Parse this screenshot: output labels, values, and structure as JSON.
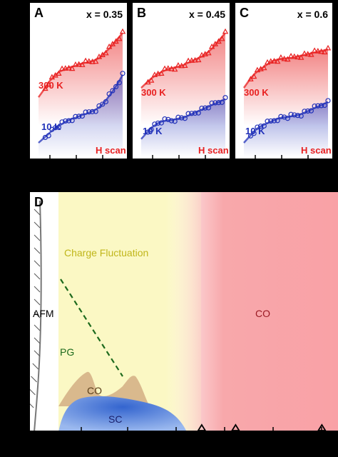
{
  "panels": [
    {
      "letter": "A",
      "xval": "x = 0.35",
      "label_300": "300 K",
      "label_10": "10 K",
      "scan": "H scan"
    },
    {
      "letter": "B",
      "xval": "x = 0.45",
      "label_300": "300 K",
      "label_10": "10 K",
      "scan": "H scan"
    },
    {
      "letter": "C",
      "xval": "x = 0.6",
      "label_300": "300 K",
      "label_10": "10 K",
      "scan": "H scan"
    }
  ],
  "main": {
    "letter": "D",
    "charge_fluctuation": "Charge Fluctuation",
    "afm": "AFM",
    "pg": "PG",
    "co_small": "CO",
    "sc": "SC",
    "co_big": "CO"
  },
  "colors": {
    "red": "#e82020",
    "blue": "#2030b8",
    "yellow_region": "#fbf8c4",
    "pink_region": "#f8a8ab",
    "co_dome": "#d9b98d",
    "sc_dome": "#2c62c8",
    "pg_line": "#1d6a1d",
    "cf_text": "#c0b61a",
    "co_text": "#9a1a24"
  },
  "chart_data": [
    {
      "type": "scatter",
      "panel": "A",
      "title": "x = 0.35",
      "series": [
        {
          "name": "300 K",
          "x": [
            0,
            0.04,
            0.08,
            0.12,
            0.16,
            0.2,
            0.24,
            0.28,
            0.32,
            0.36,
            0.4,
            0.44,
            0.48,
            0.52,
            0.56,
            0.6,
            0.64,
            0.68,
            0.72,
            0.76,
            0.8,
            0.84,
            0.88,
            0.92,
            0.96,
            1.0
          ],
          "y": [
            0.18,
            0.24,
            0.3,
            0.37,
            0.42,
            0.46,
            0.5,
            0.52,
            0.54,
            0.56,
            0.57,
            0.58,
            0.6,
            0.61,
            0.62,
            0.63,
            0.64,
            0.66,
            0.68,
            0.72,
            0.76,
            0.8,
            0.85,
            0.9,
            0.95,
            1.0
          ]
        },
        {
          "name": "10 K",
          "x": [
            0,
            0.04,
            0.08,
            0.12,
            0.16,
            0.2,
            0.24,
            0.28,
            0.32,
            0.36,
            0.4,
            0.44,
            0.48,
            0.52,
            0.56,
            0.6,
            0.64,
            0.68,
            0.72,
            0.76,
            0.8,
            0.84,
            0.88,
            0.92,
            0.96,
            1.0
          ],
          "y": [
            0.0,
            0.04,
            0.08,
            0.12,
            0.16,
            0.2,
            0.22,
            0.25,
            0.28,
            0.3,
            0.32,
            0.33,
            0.35,
            0.37,
            0.38,
            0.4,
            0.42,
            0.44,
            0.47,
            0.51,
            0.56,
            0.62,
            0.68,
            0.75,
            0.82,
            0.9
          ]
        }
      ]
    },
    {
      "type": "scatter",
      "panel": "B",
      "title": "x = 0.45",
      "series": [
        {
          "name": "300 K",
          "x": [
            0,
            0.04,
            0.08,
            0.12,
            0.16,
            0.2,
            0.24,
            0.28,
            0.32,
            0.36,
            0.4,
            0.44,
            0.48,
            0.52,
            0.56,
            0.6,
            0.64,
            0.68,
            0.72,
            0.76,
            0.8,
            0.84,
            0.88,
            0.92,
            0.96,
            1.0
          ],
          "y": [
            0.3,
            0.34,
            0.38,
            0.42,
            0.45,
            0.48,
            0.5,
            0.52,
            0.54,
            0.55,
            0.56,
            0.57,
            0.58,
            0.6,
            0.62,
            0.64,
            0.66,
            0.68,
            0.7,
            0.73,
            0.76,
            0.8,
            0.85,
            0.9,
            0.95,
            1.0
          ]
        },
        {
          "name": "10 K",
          "x": [
            0,
            0.04,
            0.08,
            0.12,
            0.16,
            0.2,
            0.24,
            0.28,
            0.32,
            0.36,
            0.4,
            0.44,
            0.48,
            0.52,
            0.56,
            0.6,
            0.64,
            0.68,
            0.72,
            0.76,
            0.8,
            0.84,
            0.88,
            0.92,
            0.96,
            1.0
          ],
          "y": [
            0.05,
            0.1,
            0.15,
            0.2,
            0.23,
            0.26,
            0.28,
            0.29,
            0.3,
            0.3,
            0.31,
            0.32,
            0.33,
            0.34,
            0.36,
            0.38,
            0.4,
            0.42,
            0.44,
            0.46,
            0.48,
            0.5,
            0.52,
            0.54,
            0.56,
            0.58
          ]
        }
      ]
    },
    {
      "type": "scatter",
      "panel": "C",
      "title": "x = 0.6",
      "series": [
        {
          "name": "300 K",
          "x": [
            0,
            0.04,
            0.08,
            0.12,
            0.16,
            0.2,
            0.24,
            0.28,
            0.32,
            0.36,
            0.4,
            0.44,
            0.48,
            0.52,
            0.56,
            0.6,
            0.64,
            0.68,
            0.72,
            0.76,
            0.8,
            0.84,
            0.88,
            0.92,
            0.96,
            1.0
          ],
          "y": [
            0.3,
            0.36,
            0.42,
            0.47,
            0.51,
            0.54,
            0.57,
            0.6,
            0.63,
            0.65,
            0.66,
            0.67,
            0.67,
            0.68,
            0.68,
            0.69,
            0.7,
            0.71,
            0.72,
            0.73,
            0.74,
            0.75,
            0.76,
            0.77,
            0.78,
            0.79
          ]
        },
        {
          "name": "10 K",
          "x": [
            0,
            0.04,
            0.08,
            0.12,
            0.16,
            0.2,
            0.24,
            0.28,
            0.32,
            0.36,
            0.4,
            0.44,
            0.48,
            0.52,
            0.56,
            0.6,
            0.64,
            0.68,
            0.72,
            0.76,
            0.8,
            0.84,
            0.88,
            0.92,
            0.96,
            1.0
          ],
          "y": [
            0.0,
            0.05,
            0.1,
            0.15,
            0.19,
            0.22,
            0.24,
            0.26,
            0.28,
            0.3,
            0.32,
            0.33,
            0.34,
            0.34,
            0.35,
            0.36,
            0.37,
            0.38,
            0.4,
            0.42,
            0.44,
            0.46,
            0.48,
            0.5,
            0.52,
            0.54
          ]
        }
      ]
    },
    {
      "type": "area",
      "panel": "D",
      "regions": [
        "AFM",
        "PG",
        "Charge Fluctuation",
        "CO",
        "SC"
      ],
      "series": [
        {
          "name": "SC",
          "x": [
            0.12,
            0.18,
            0.24,
            0.3,
            0.36,
            0.42,
            0.48,
            0.54
          ],
          "y": [
            0,
            15,
            36,
            42,
            36,
            26,
            14,
            0
          ]
        },
        {
          "name": "CO",
          "x": [
            0.18,
            0.2,
            0.22,
            0.24,
            0.26,
            0.28,
            0.3,
            0.32,
            0.34
          ],
          "y": [
            0,
            20,
            70,
            60,
            30,
            40,
            60,
            20,
            0
          ]
        }
      ],
      "pg_line": {
        "x": [
          0.2,
          0.3
        ],
        "y": [
          200,
          75
        ]
      },
      "markers_x": [
        0.59,
        0.7,
        0.98
      ]
    }
  ]
}
